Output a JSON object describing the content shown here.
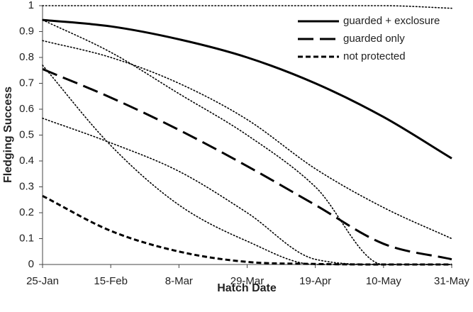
{
  "chart_data": {
    "type": "line",
    "x_label": "Hatch Date",
    "y_label": "Fledging Success",
    "categories": [
      "25-Jan",
      "15-Feb",
      "8-Mar",
      "29-Mar",
      "19-Apr",
      "10-May",
      "31-May"
    ],
    "ylim": [
      0,
      1
    ],
    "yticks": [
      0,
      0.1,
      0.2,
      0.3,
      0.4,
      0.5,
      0.6,
      0.7,
      0.8,
      0.9,
      1
    ],
    "legend": "upper right",
    "series": [
      {
        "name": "guarded + exclosure",
        "color": "#000000",
        "dash": "solid",
        "values": [
          0.945,
          0.92,
          0.87,
          0.8,
          0.7,
          0.57,
          0.41
        ]
      },
      {
        "name": "guarded only",
        "color": "#000000",
        "dash": "long-dash",
        "values": [
          0.755,
          0.645,
          0.52,
          0.38,
          0.23,
          0.08,
          0.02
        ]
      },
      {
        "name": "not protected",
        "color": "#000000",
        "dash": "short-dash",
        "values": [
          0.265,
          0.13,
          0.05,
          0.01,
          0.002,
          0,
          0
        ]
      },
      {
        "color": "#000000",
        "dash": "dotted",
        "values": [
          1,
          1,
          1,
          1,
          1,
          1,
          0.99
        ]
      },
      {
        "color": "#000000",
        "dash": "dotted",
        "values": [
          0.865,
          0.8,
          0.7,
          0.56,
          0.37,
          0.22,
          0.1
        ]
      },
      {
        "color": "#000000",
        "dash": "dotted",
        "values": [
          0.945,
          0.82,
          0.66,
          0.5,
          0.3,
          0,
          0
        ]
      },
      {
        "color": "#000000",
        "dash": "dotted",
        "values": [
          0.77,
          0.46,
          0.23,
          0.09,
          0,
          0,
          0
        ]
      },
      {
        "color": "#000000",
        "dash": "dotted",
        "values": [
          0.565,
          0.47,
          0.36,
          0.2,
          0.02,
          0,
          0
        ]
      }
    ]
  }
}
